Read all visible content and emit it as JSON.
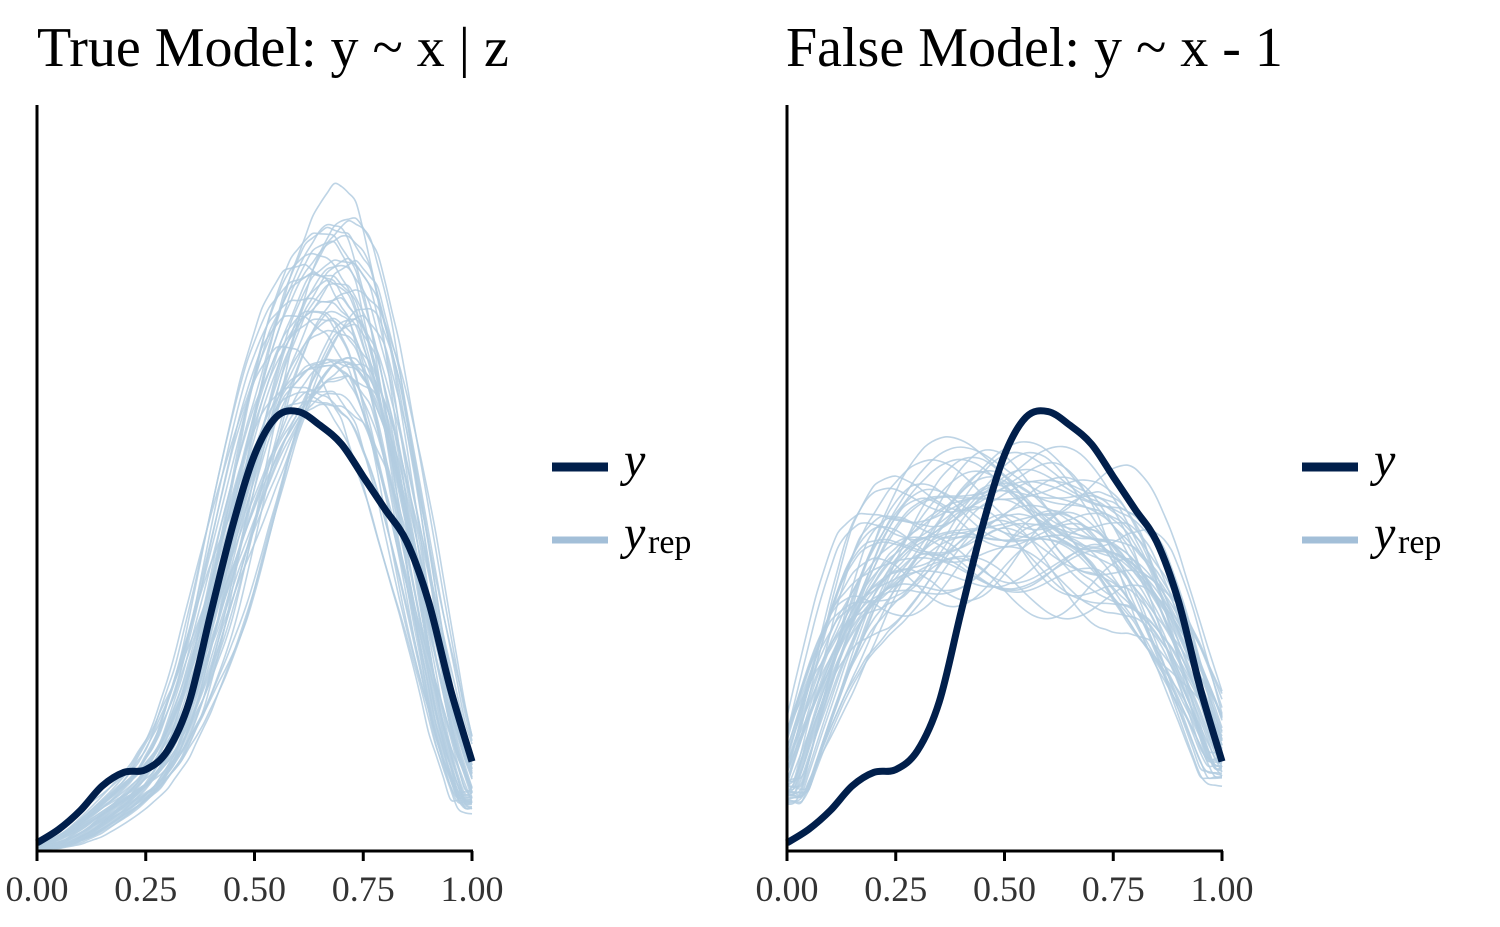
{
  "colors": {
    "y": "#011f4b",
    "yrep": "#b3cde0",
    "yrep_legend": "#a3bfd8",
    "axis": "#000000"
  },
  "chart_data": [
    {
      "type": "line",
      "title": "True Model: y ~ x | z",
      "xlabel": "",
      "ylabel": "",
      "xlim": [
        0,
        1
      ],
      "ylim": [
        0,
        2.75
      ],
      "xticks": [
        "0.00",
        "0.25",
        "0.50",
        "0.75",
        "1.00"
      ],
      "legend": {
        "placement": "right",
        "y_label": "y",
        "yrep_label": "y",
        "yrep_sub": "rep"
      },
      "y_observed": {
        "x": [
          0.0,
          0.05,
          0.1,
          0.15,
          0.2,
          0.25,
          0.3,
          0.35,
          0.4,
          0.45,
          0.5,
          0.55,
          0.6,
          0.65,
          0.7,
          0.75,
          0.8,
          0.85,
          0.9,
          0.95,
          1.0
        ],
        "y": [
          0.03,
          0.08,
          0.15,
          0.24,
          0.29,
          0.3,
          0.37,
          0.55,
          0.88,
          1.2,
          1.46,
          1.6,
          1.62,
          1.57,
          1.5,
          1.38,
          1.26,
          1.14,
          0.92,
          0.6,
          0.33
        ]
      },
      "y_rep": {
        "x": [
          0.0,
          0.05,
          0.1,
          0.15,
          0.2,
          0.25,
          0.3,
          0.35,
          0.4,
          0.45,
          0.5,
          0.55,
          0.6,
          0.65,
          0.7,
          0.75,
          0.8,
          0.85,
          0.9,
          0.95,
          1.0
        ],
        "y": [
          0.01,
          0.03,
          0.07,
          0.13,
          0.19,
          0.26,
          0.38,
          0.58,
          0.85,
          1.15,
          1.45,
          1.7,
          1.88,
          1.98,
          2.0,
          1.9,
          1.62,
          1.22,
          0.8,
          0.42,
          0.18
        ],
        "draws": 50
      }
    },
    {
      "type": "line",
      "title": "False Model: y ~ x - 1",
      "xlabel": "",
      "ylabel": "",
      "xlim": [
        0,
        1
      ],
      "ylim": [
        0,
        2.75
      ],
      "xticks": [
        "0.00",
        "0.25",
        "0.50",
        "0.75",
        "1.00"
      ],
      "legend": {
        "placement": "right",
        "y_label": "y",
        "yrep_label": "y",
        "yrep_sub": "rep"
      },
      "y_observed": {
        "x": [
          0.0,
          0.05,
          0.1,
          0.15,
          0.2,
          0.25,
          0.3,
          0.35,
          0.4,
          0.45,
          0.5,
          0.55,
          0.6,
          0.65,
          0.7,
          0.75,
          0.8,
          0.85,
          0.9,
          0.95,
          1.0
        ],
        "y": [
          0.03,
          0.08,
          0.15,
          0.24,
          0.29,
          0.3,
          0.37,
          0.55,
          0.88,
          1.2,
          1.46,
          1.6,
          1.62,
          1.57,
          1.5,
          1.38,
          1.26,
          1.14,
          0.92,
          0.6,
          0.33
        ]
      },
      "y_rep": {
        "x": [
          0.0,
          0.05,
          0.1,
          0.15,
          0.2,
          0.25,
          0.3,
          0.35,
          0.4,
          0.45,
          0.5,
          0.55,
          0.6,
          0.65,
          0.7,
          0.75,
          0.8,
          0.85,
          0.9,
          0.95,
          1.0
        ],
        "y": [
          0.22,
          0.48,
          0.72,
          0.92,
          1.05,
          1.13,
          1.18,
          1.21,
          1.23,
          1.24,
          1.24,
          1.23,
          1.21,
          1.19,
          1.16,
          1.12,
          1.04,
          0.92,
          0.75,
          0.55,
          0.33
        ],
        "draws": 50
      }
    }
  ]
}
